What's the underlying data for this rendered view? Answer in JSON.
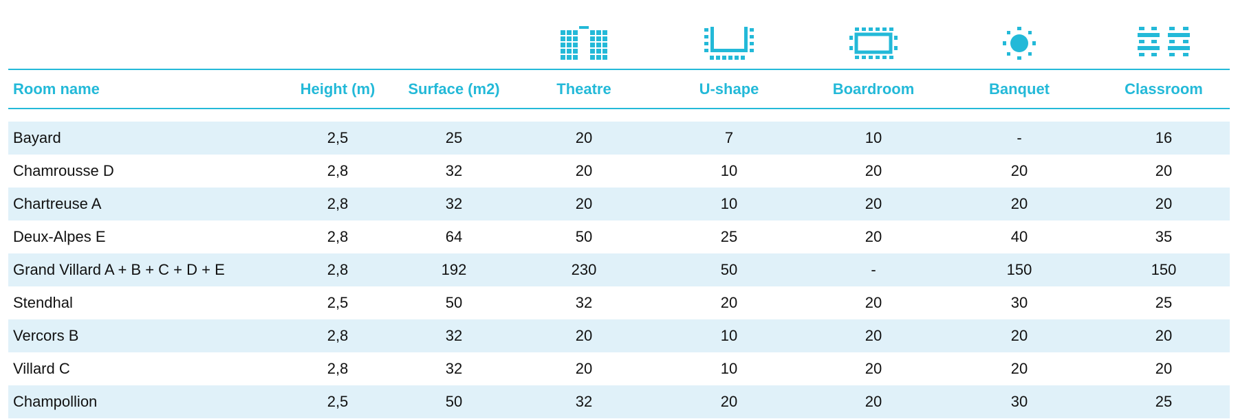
{
  "colors": {
    "accent": "#23b9d8",
    "row_shade": "#e0f1f9",
    "text": "#111111"
  },
  "icons": [
    "theatre-layout-icon",
    "u-shape-layout-icon",
    "boardroom-layout-icon",
    "banquet-layout-icon",
    "classroom-layout-icon"
  ],
  "headers": {
    "room_name": "Room name",
    "height": "Height (m)",
    "surface": "Surface (m2)",
    "theatre": "Theatre",
    "ushape": "U-shape",
    "boardroom": "Boardroom",
    "banquet": "Banquet",
    "classroom": "Classroom"
  },
  "rows": [
    {
      "name": "Bayard",
      "height": "2,5",
      "surface": "25",
      "theatre": "20",
      "ushape": "7",
      "boardroom": "10",
      "banquet": "-",
      "classroom": "16"
    },
    {
      "name": "Chamrousse D",
      "height": "2,8",
      "surface": "32",
      "theatre": "20",
      "ushape": "10",
      "boardroom": "20",
      "banquet": "20",
      "classroom": "20"
    },
    {
      "name": "Chartreuse A",
      "height": "2,8",
      "surface": "32",
      "theatre": "20",
      "ushape": "10",
      "boardroom": "20",
      "banquet": "20",
      "classroom": "20"
    },
    {
      "name": "Deux-Alpes E",
      "height": "2,8",
      "surface": "64",
      "theatre": "50",
      "ushape": "25",
      "boardroom": "20",
      "banquet": "40",
      "classroom": "35"
    },
    {
      "name": "Grand Villard A + B + C + D + E",
      "height": "2,8",
      "surface": "192",
      "theatre": "230",
      "ushape": "50",
      "boardroom": "-",
      "banquet": "150",
      "classroom": "150"
    },
    {
      "name": "Stendhal",
      "height": "2,5",
      "surface": "50",
      "theatre": "32",
      "ushape": "20",
      "boardroom": "20",
      "banquet": "30",
      "classroom": "25"
    },
    {
      "name": "Vercors B",
      "height": "2,8",
      "surface": "32",
      "theatre": "20",
      "ushape": "10",
      "boardroom": "20",
      "banquet": "20",
      "classroom": "20"
    },
    {
      "name": "Villard C",
      "height": "2,8",
      "surface": "32",
      "theatre": "20",
      "ushape": "10",
      "boardroom": "20",
      "banquet": "20",
      "classroom": "20"
    },
    {
      "name": "Champollion",
      "height": "2,5",
      "surface": "50",
      "theatre": "32",
      "ushape": "20",
      "boardroom": "20",
      "banquet": "30",
      "classroom": "25"
    }
  ]
}
